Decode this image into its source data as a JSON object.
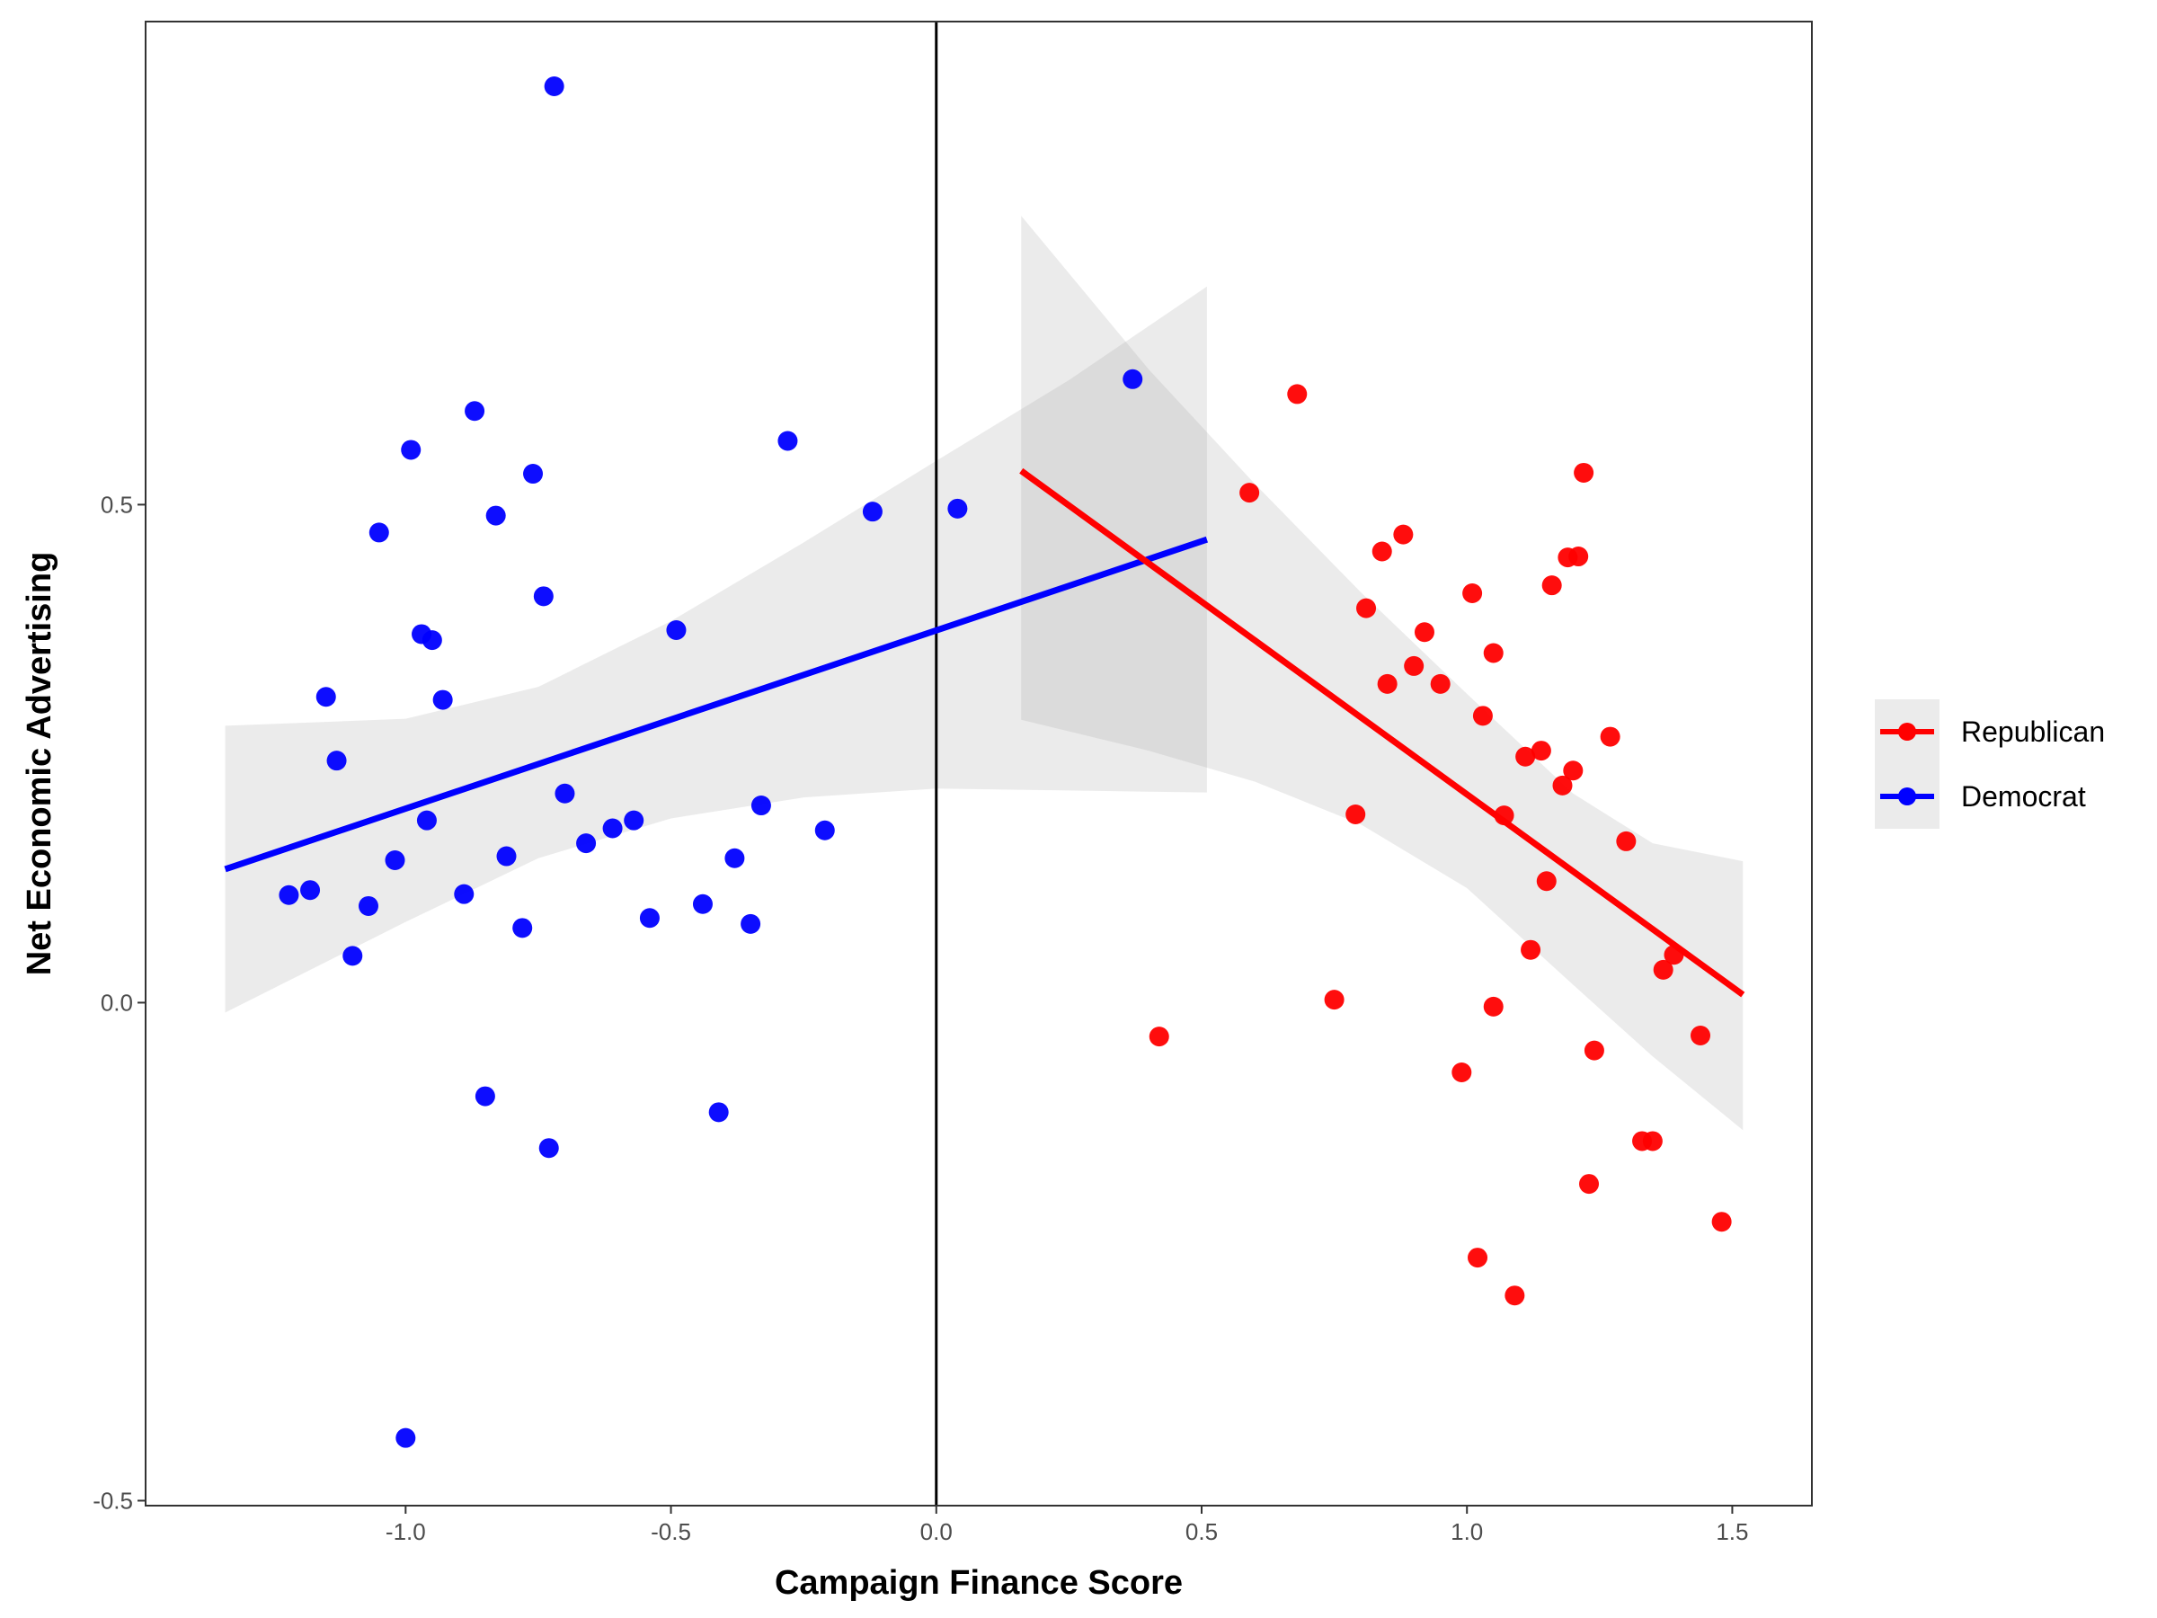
{
  "chart_data": {
    "type": "scatter",
    "xlabel": "Campaign Finance Score",
    "ylabel": "Net Economic Advertising",
    "xlim": [
      -1.49,
      1.65
    ],
    "ylim": [
      -0.505,
      0.985
    ],
    "x_ticks": [
      -1.0,
      -0.5,
      0.0,
      0.5,
      1.0,
      1.5
    ],
    "x_tick_labels": [
      "-1.0",
      "-0.5",
      "0.0",
      "0.5",
      "1.0",
      "1.5"
    ],
    "y_ticks": [
      -0.5,
      0.0,
      0.5
    ],
    "y_tick_labels": [
      "-0.5",
      "0.0",
      "0.5"
    ],
    "vline_x": 0.0,
    "grid": false,
    "legend_position": "right",
    "legend": [
      {
        "label": "Republican",
        "color": "#ff0000"
      },
      {
        "label": "Democrat",
        "color": "#0000ff"
      }
    ],
    "series": [
      {
        "name": "Democrat",
        "color": "#0000ff",
        "points": [
          [
            -0.72,
            0.92
          ],
          [
            -0.87,
            0.594
          ],
          [
            -0.99,
            0.555
          ],
          [
            -0.76,
            0.531
          ],
          [
            -0.28,
            0.564
          ],
          [
            -0.83,
            0.489
          ],
          [
            -1.05,
            0.472
          ],
          [
            -0.12,
            0.493
          ],
          [
            0.04,
            0.496
          ],
          [
            -0.74,
            0.408
          ],
          [
            -0.97,
            0.37
          ],
          [
            -0.95,
            0.364
          ],
          [
            -0.49,
            0.374
          ],
          [
            -1.15,
            0.307
          ],
          [
            -0.93,
            0.304
          ],
          [
            -1.13,
            0.243
          ],
          [
            -0.7,
            0.21
          ],
          [
            -0.33,
            0.198
          ],
          [
            -0.96,
            0.183
          ],
          [
            -0.57,
            0.183
          ],
          [
            -0.61,
            0.175
          ],
          [
            -0.21,
            0.173
          ],
          [
            -0.66,
            0.16
          ],
          [
            -1.02,
            0.143
          ],
          [
            -0.81,
            0.147
          ],
          [
            -0.38,
            0.145
          ],
          [
            -1.18,
            0.113
          ],
          [
            -1.22,
            0.108
          ],
          [
            -0.89,
            0.109
          ],
          [
            -1.07,
            0.097
          ],
          [
            -0.44,
            0.099
          ],
          [
            -0.54,
            0.085
          ],
          [
            -0.78,
            0.075
          ],
          [
            -0.35,
            0.079
          ],
          [
            -1.1,
            0.047
          ],
          [
            -0.85,
            -0.094
          ],
          [
            -0.41,
            -0.11
          ],
          [
            -0.73,
            -0.146
          ],
          [
            -1.0,
            -0.437
          ],
          [
            0.37,
            0.626
          ]
        ]
      },
      {
        "name": "Republican",
        "color": "#ff0000",
        "points": [
          [
            0.68,
            0.611
          ],
          [
            0.59,
            0.512
          ],
          [
            1.22,
            0.532
          ],
          [
            0.88,
            0.47
          ],
          [
            0.84,
            0.453
          ],
          [
            1.19,
            0.447
          ],
          [
            1.21,
            0.448
          ],
          [
            1.16,
            0.419
          ],
          [
            1.01,
            0.411
          ],
          [
            0.81,
            0.396
          ],
          [
            0.92,
            0.372
          ],
          [
            1.05,
            0.351
          ],
          [
            0.9,
            0.338
          ],
          [
            0.85,
            0.32
          ],
          [
            0.95,
            0.32
          ],
          [
            1.03,
            0.288
          ],
          [
            1.27,
            0.267
          ],
          [
            1.14,
            0.253
          ],
          [
            1.11,
            0.247
          ],
          [
            1.2,
            0.233
          ],
          [
            1.18,
            0.218
          ],
          [
            0.79,
            0.189
          ],
          [
            1.07,
            0.188
          ],
          [
            1.3,
            0.162
          ],
          [
            1.15,
            0.122
          ],
          [
            1.12,
            0.053
          ],
          [
            1.39,
            0.048
          ],
          [
            1.37,
            0.033
          ],
          [
            0.75,
            0.003
          ],
          [
            1.05,
            -0.004
          ],
          [
            0.42,
            -0.034
          ],
          [
            1.44,
            -0.033
          ],
          [
            1.24,
            -0.048
          ],
          [
            0.99,
            -0.07
          ],
          [
            1.33,
            -0.139
          ],
          [
            1.35,
            -0.139
          ],
          [
            1.23,
            -0.182
          ],
          [
            1.48,
            -0.22
          ],
          [
            1.02,
            -0.256
          ],
          [
            1.09,
            -0.294
          ]
        ]
      }
    ],
    "fits": [
      {
        "name": "Democrat",
        "color": "#0000ff",
        "x": [
          -1.34,
          0.51
        ],
        "y": [
          0.134,
          0.465
        ]
      },
      {
        "name": "Republican",
        "color": "#ff0000",
        "x": [
          0.16,
          1.52
        ],
        "y": [
          0.534,
          0.008
        ]
      }
    ],
    "confidence_bands": [
      {
        "name": "Democrat",
        "x": [
          -1.34,
          -1.0,
          -0.75,
          -0.5,
          -0.25,
          0.0,
          0.25,
          0.51
        ],
        "upper": [
          0.278,
          0.285,
          0.317,
          0.383,
          0.462,
          0.544,
          0.625,
          0.719
        ],
        "lower": [
          -0.01,
          0.081,
          0.145,
          0.185,
          0.206,
          0.215,
          0.213,
          0.211
        ]
      },
      {
        "name": "Republican",
        "x": [
          0.16,
          0.4,
          0.6,
          0.8,
          1.0,
          1.2,
          1.35,
          1.52
        ],
        "upper": [
          0.79,
          0.636,
          0.521,
          0.412,
          0.31,
          0.21,
          0.16,
          0.142
        ],
        "lower": [
          0.284,
          0.253,
          0.222,
          0.179,
          0.115,
          0.018,
          -0.054,
          -0.128
        ]
      }
    ]
  }
}
